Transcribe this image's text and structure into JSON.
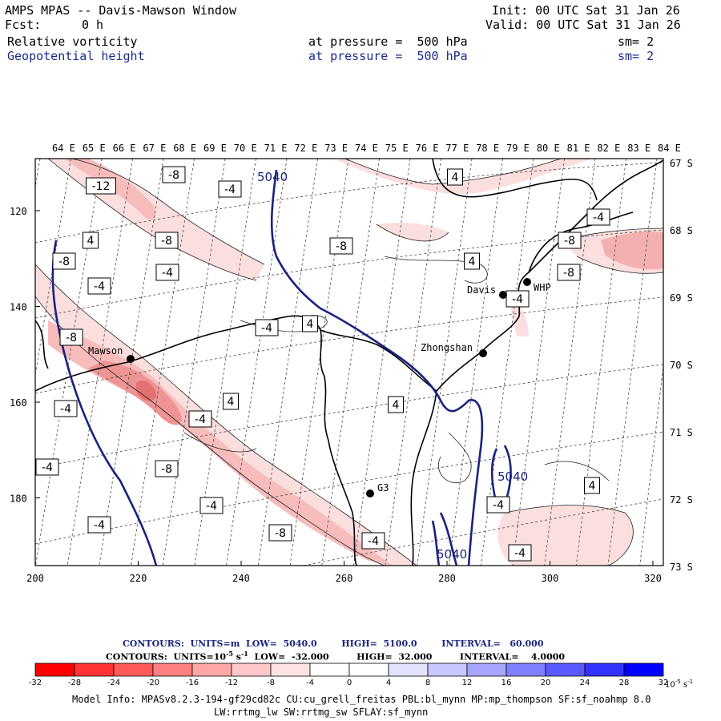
{
  "header": {
    "title": "AMPS MPAS -- Davis-Mawson Window",
    "init": "Init: 00 UTC Sat 31 Jan 26",
    "fcst_label": "Fcst:",
    "fcst_value": "0 h",
    "valid": "Valid: 00 UTC Sat 31 Jan 26",
    "field1": {
      "name": "Relative vorticity",
      "level": "at pressure =  500 hPa",
      "smooth": "sm= 2"
    },
    "field2": {
      "name": "Geopotential height",
      "level": "at pressure =  500 hPa",
      "smooth": "sm= 2"
    }
  },
  "map": {
    "top_lon_labels": [
      "64 E",
      "65 E",
      "66 E",
      "67 E",
      "68 E",
      "69 E",
      "70 E",
      "71 E",
      "72 E",
      "73 E",
      "74 E",
      "75 E",
      "76 E",
      "77 E",
      "78 E",
      "79 E",
      "80 E",
      "81 E",
      "82 E",
      "83 E",
      "84 E"
    ],
    "right_lat_labels": [
      "67 S",
      "68 S",
      "69 S",
      "70 S",
      "71 S",
      "72 S",
      "73 S"
    ],
    "left_axis_labels": [
      "120",
      "140",
      "160",
      "180"
    ],
    "bottom_axis_labels": [
      "200",
      "220",
      "240",
      "260",
      "280",
      "300",
      "320"
    ],
    "stations": [
      {
        "name": "Mawson",
        "short": "Mawson"
      },
      {
        "name": "Davis",
        "short": "Davis"
      },
      {
        "name": "WHP",
        "short": "WHP"
      },
      {
        "name": "Zhongshan",
        "short": "Zhongshan"
      },
      {
        "name": "G3",
        "short": "G3"
      }
    ],
    "height_contour_labels": [
      "5040",
      "5040",
      "5040"
    ],
    "vort_labels": [
      "-12",
      "-8",
      "-4",
      "-8",
      "-4",
      "4",
      "-8",
      "-4",
      "-8",
      "-4",
      "-4",
      "4",
      "-4",
      "-8",
      "-4",
      "-4",
      "4",
      "-8",
      "-4",
      "4",
      "-8",
      "-8",
      "-4",
      "-4",
      "4",
      "-8",
      "4",
      "-4",
      "-4",
      "4",
      "-4"
    ],
    "colors": {
      "height": "#1a237e",
      "neg_strong": "#e88080",
      "neg_mid": "#f4b0b0",
      "neg_light": "#fbdede"
    }
  },
  "footer": {
    "contours1": "CONTOURS:  UNITS=m  LOW=  5040.0        HIGH=  5100.0        INTERVAL=   60.000",
    "contours2_a": "CONTOURS:  UNITS=10",
    "contours2_exp": "-5",
    "contours2_b": " s",
    "contours2_exp2": "-1",
    "contours2_c": "  LOW=  -32.000         HIGH=  32.000         INTERVAL=    4.0000",
    "colorbar_ticks": [
      "-32",
      "-28",
      "-24",
      "-20",
      "-16",
      "-12",
      "-8",
      "-4",
      "0",
      "4",
      "8",
      "12",
      "16",
      "20",
      "24",
      "28",
      "32"
    ],
    "colorbar_unit": "10",
    "colorbar_unit_exp": "-5",
    "colorbar_unit2": " s",
    "colorbar_unit2_exp": "-1",
    "colorbar_colors": [
      "#ff0000",
      "#ff3333",
      "#ff5959",
      "#ff8080",
      "#ffa6a6",
      "#ffc8c8",
      "#ffe3e3",
      "#ffffff",
      "#ffffff",
      "#e3e3ff",
      "#c8c8ff",
      "#a6a6ff",
      "#8080ff",
      "#5959ff",
      "#3333ff",
      "#0000ff"
    ],
    "model_info1": "Model Info: MPASv8.2.3-194-gf29cd82c CU:cu_grell_freitas PBL:bl_mynn MP:mp_thompson SF:sf_noahmp 8.0",
    "model_info2": "LW:rrtmg_lw SW:rrtmg_sw SFLAY:sf_mynn"
  }
}
